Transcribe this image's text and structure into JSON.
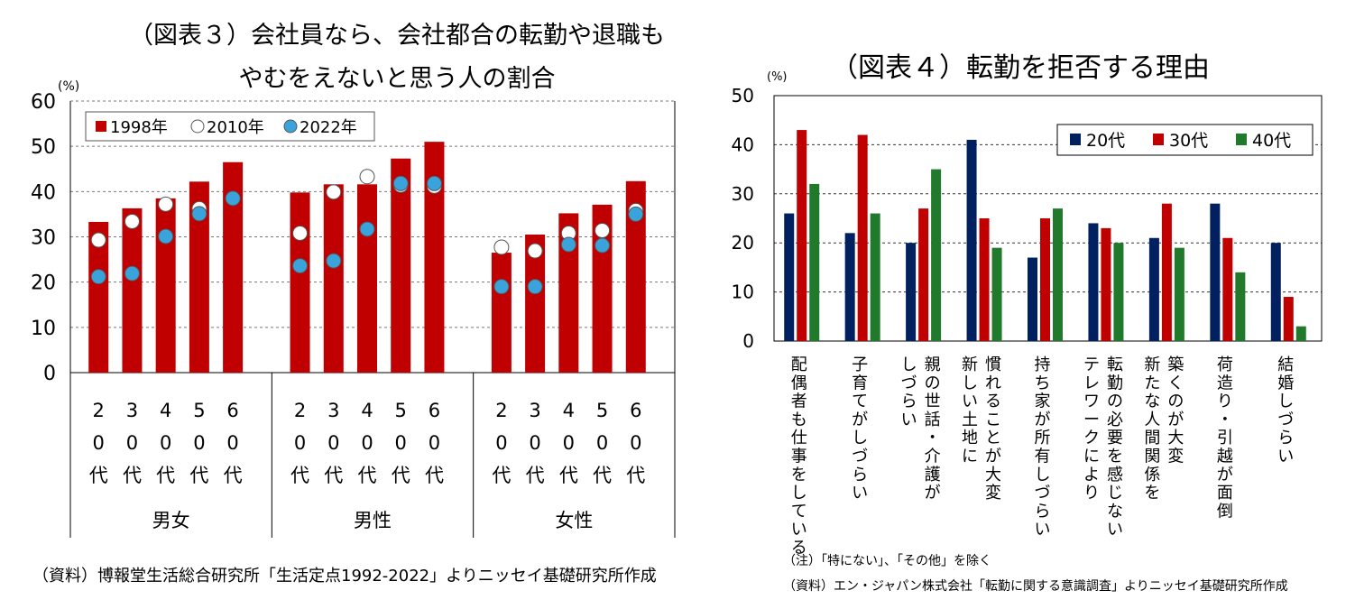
{
  "chart3_title_line1": "（図表３）会社員なら、会社都合の転勤や退職も",
  "chart3_title_line2": "やむをえないと思う人の割合",
  "chart4_title": "（図表４）転勤を拒否する理由",
  "chart3_source": "（資料）博報堂生活総合研究所「生活定点1992-2022」よりニッセイ基礎研究所作成",
  "chart4_note": "（注）「特にない」、「その他」を除く",
  "chart4_source": "（資料）エン・ジャパン株式会社「転勤に関する意識調査」よりニッセイ基礎研究所作成",
  "colors": {
    "red": "#c00000",
    "navy": "#002060",
    "green": "#217a2c",
    "blue_dot": "#3ba3dc"
  },
  "chart_data": [
    {
      "type": "bar",
      "title": "（図表３）会社員なら、会社都合の転勤や退職もやむをえないと思う人の割合",
      "unit": "(%)",
      "ylim": [
        0,
        60
      ],
      "yticks": [
        "0",
        "10",
        "20",
        "30",
        "40",
        "50",
        "60"
      ],
      "groups": [
        "男女",
        "男性",
        "女性"
      ],
      "categories": [
        "20代",
        "30代",
        "40代",
        "50代",
        "60代"
      ],
      "category_chars": [
        [
          "2",
          "0",
          "代"
        ],
        [
          "3",
          "0",
          "代"
        ],
        [
          "4",
          "0",
          "代"
        ],
        [
          "5",
          "0",
          "代"
        ],
        [
          "6",
          "0",
          "代"
        ]
      ],
      "legend": [
        "1998年",
        "2010年",
        "2022年"
      ],
      "series": [
        {
          "name": "1998年",
          "style": "bar",
          "values": [
            [
              33.3,
              36.3,
              38.5,
              42.2,
              46.5
            ],
            [
              39.8,
              41.6,
              41.6,
              47.3,
              51.0
            ],
            [
              26.5,
              30.5,
              35.2,
              37.1,
              42.3
            ]
          ]
        },
        {
          "name": "2010年",
          "style": "open-circle",
          "values": [
            [
              29.3,
              33.4,
              37.2,
              36.2,
              null
            ],
            [
              30.8,
              39.9,
              43.3,
              41.4,
              41.2
            ],
            [
              27.7,
              26.9,
              30.8,
              31.4,
              35.8
            ]
          ]
        },
        {
          "name": "2022年",
          "style": "filled-circle",
          "values": [
            [
              21.2,
              21.9,
              30.1,
              35.1,
              38.5
            ],
            [
              23.6,
              24.7,
              31.7,
              41.8,
              41.8
            ],
            [
              19.0,
              19.0,
              28.3,
              28.1,
              35.0
            ]
          ]
        }
      ],
      "grid": true
    },
    {
      "type": "bar",
      "title": "（図表４）転勤を拒否する理由",
      "unit": "(%)",
      "ylim": [
        0,
        50
      ],
      "yticks": [
        "0",
        "10",
        "20",
        "30",
        "40",
        "50"
      ],
      "categories": [
        [
          "配偶者も仕事をしている"
        ],
        [
          "子育てがしづらい"
        ],
        [
          "親の世話・介護が",
          "しづらい"
        ],
        [
          "慣れることが大変",
          "新しい土地に"
        ],
        [
          "持ち家が所有しづらい"
        ],
        [
          "転勤の必要を感じない",
          "テレワークにより"
        ],
        [
          "築くのが大変",
          "新たな人間関係を"
        ],
        [
          "荷造り・引越が面倒"
        ],
        [
          "結婚しづらい"
        ]
      ],
      "series": [
        {
          "name": "20代",
          "values": [
            26,
            22,
            20,
            41,
            17,
            24,
            21,
            28,
            20
          ]
        },
        {
          "name": "30代",
          "values": [
            43,
            42,
            27,
            25,
            25,
            23,
            28,
            21,
            9
          ]
        },
        {
          "name": "40代",
          "values": [
            32,
            26,
            35,
            19,
            27,
            20,
            19,
            14,
            3
          ]
        }
      ],
      "legend_position": "top-right",
      "grid": true
    }
  ]
}
